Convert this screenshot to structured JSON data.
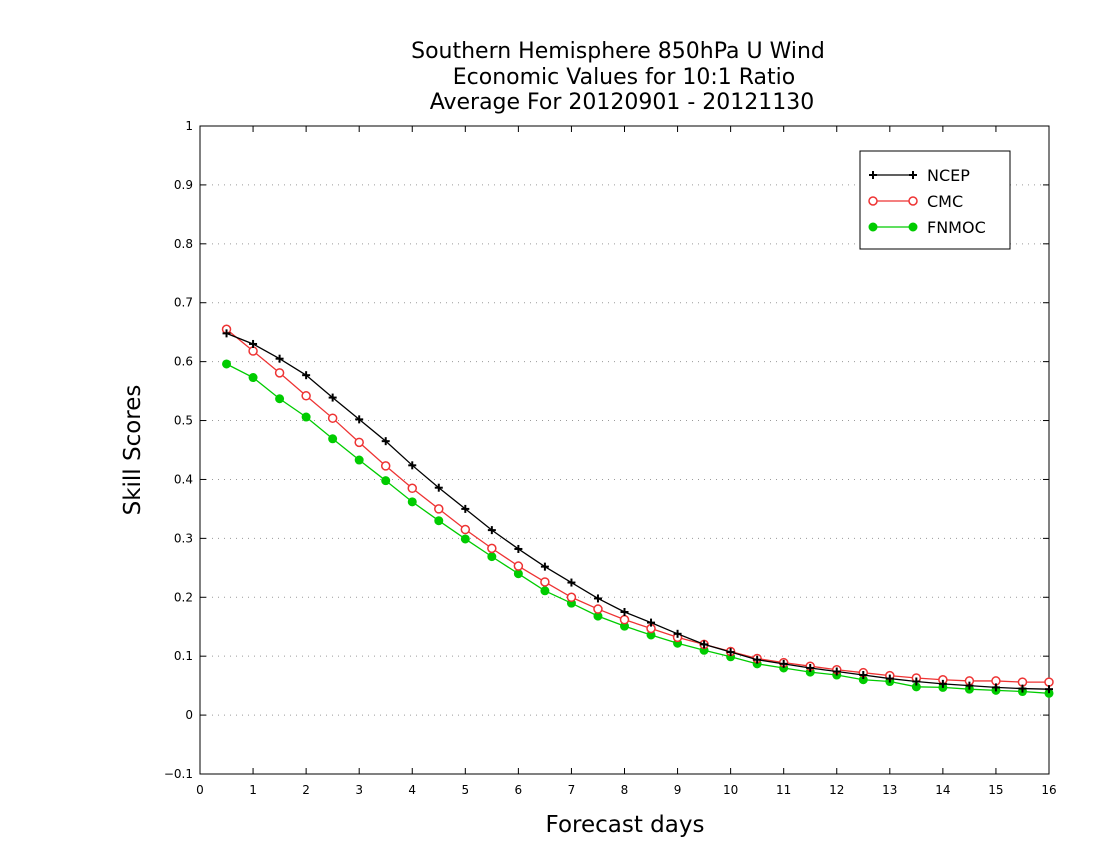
{
  "chart_data": {
    "type": "line",
    "title": [
      "Southern Hemisphere 850hPa U Wind",
      "Economic Values for 10:1 Ratio",
      "Average For 20120901 - 20121130"
    ],
    "xlabel": "Forecast days",
    "ylabel": "Skill Scores",
    "xlim": [
      0,
      16
    ],
    "ylim": [
      -0.1,
      1
    ],
    "x_ticks": [
      0,
      1,
      2,
      3,
      4,
      5,
      6,
      7,
      8,
      9,
      10,
      11,
      12,
      13,
      14,
      15,
      16
    ],
    "x_tick_labels": [
      "0",
      "1",
      "2",
      "3",
      "4",
      "5",
      "6",
      "7",
      "8",
      "9",
      "10",
      "11",
      "12",
      "13",
      "14",
      "15",
      "16"
    ],
    "y_ticks": [
      -0.1,
      0,
      0.1,
      0.2,
      0.3,
      0.4,
      0.5,
      0.6,
      0.7,
      0.8,
      0.9,
      1
    ],
    "y_tick_labels": [
      "−0.1",
      "0",
      "0.1",
      "0.2",
      "0.3",
      "0.4",
      "0.5",
      "0.6",
      "0.7",
      "0.8",
      "0.9",
      "1"
    ],
    "grid": "horizontal-dotted",
    "legend_position": "top-right",
    "x": [
      0.5,
      1,
      1.5,
      2,
      2.5,
      3,
      3.5,
      4,
      4.5,
      5,
      5.5,
      6,
      6.5,
      7,
      7.5,
      8,
      8.5,
      9,
      9.5,
      10,
      10.5,
      11,
      11.5,
      12,
      12.5,
      13,
      13.5,
      14,
      14.5,
      15,
      15.5,
      16
    ],
    "series": [
      {
        "name": "NCEP",
        "color": "#000000",
        "marker": "plus",
        "values": [
          0.648,
          0.63,
          0.605,
          0.577,
          0.539,
          0.502,
          0.465,
          0.424,
          0.386,
          0.35,
          0.314,
          0.282,
          0.252,
          0.225,
          0.198,
          0.175,
          0.157,
          0.138,
          0.12,
          0.107,
          0.094,
          0.087,
          0.08,
          0.074,
          0.068,
          0.062,
          0.057,
          0.053,
          0.05,
          0.047,
          0.045,
          0.044
        ]
      },
      {
        "name": "CMC",
        "color": "#ee3333",
        "marker": "open-circle",
        "values": [
          0.655,
          0.618,
          0.581,
          0.542,
          0.504,
          0.463,
          0.423,
          0.385,
          0.35,
          0.315,
          0.283,
          0.253,
          0.226,
          0.2,
          0.18,
          0.162,
          0.147,
          0.132,
          0.12,
          0.108,
          0.096,
          0.089,
          0.083,
          0.077,
          0.072,
          0.067,
          0.063,
          0.06,
          0.058,
          0.058,
          0.056,
          0.056
        ]
      },
      {
        "name": "FNMOC",
        "color": "#00cc00",
        "marker": "filled-circle",
        "values": [
          0.596,
          0.573,
          0.537,
          0.506,
          0.469,
          0.433,
          0.398,
          0.362,
          0.33,
          0.299,
          0.269,
          0.24,
          0.211,
          0.19,
          0.168,
          0.151,
          0.136,
          0.122,
          0.11,
          0.099,
          0.087,
          0.08,
          0.073,
          0.068,
          0.06,
          0.057,
          0.048,
          0.047,
          0.044,
          0.042,
          0.04,
          0.037
        ]
      }
    ]
  }
}
